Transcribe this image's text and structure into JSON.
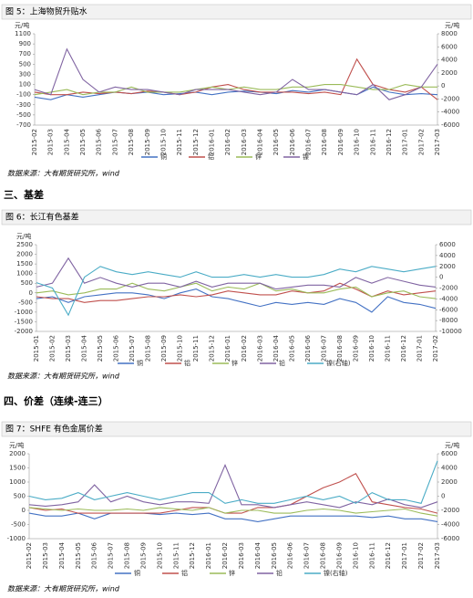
{
  "sections": [
    "三、基差",
    "四、价差（连续-连三）"
  ],
  "chart_data": [
    {
      "type": "line",
      "title": "图 5：上海物贸升贴水",
      "source": "数据来源：大有期货研究所，wind",
      "ylabel": "元/吨",
      "y2label": "元/吨",
      "categories": [
        "2015-02",
        "2015-03",
        "2015-04",
        "2015-05",
        "2015-06",
        "2015-07",
        "2015-08",
        "2015-09",
        "2015-10",
        "2015-11",
        "2015-12",
        "2016-01",
        "2016-02",
        "2016-03",
        "2016-04",
        "2016-05",
        "2016-06",
        "2016-07",
        "2016-08",
        "2016-09",
        "2016-10",
        "2016-11",
        "2016-12",
        "2017-01",
        "2017-02",
        "2017-03"
      ],
      "ylim": [
        -700,
        1100
      ],
      "yticks": [
        -700,
        -500,
        -300,
        -100,
        100,
        300,
        500,
        700,
        900,
        1100
      ],
      "y2lim": [
        -6000,
        8000
      ],
      "y2ticks": [
        -6000,
        -4000,
        -2000,
        0,
        2000,
        4000,
        6000,
        8000
      ],
      "series": [
        {
          "name": "铜",
          "color": "#4472c4",
          "values": [
            -150,
            -200,
            -100,
            -150,
            -100,
            -50,
            -80,
            -50,
            -100,
            -80,
            -50,
            -100,
            -50,
            -30,
            -50,
            -80,
            -20,
            -50,
            0,
            -50,
            -100,
            50,
            -50,
            -100,
            -80,
            -100
          ]
        },
        {
          "name": "铝",
          "color": "#c0504d",
          "values": [
            -50,
            -100,
            -100,
            -50,
            -80,
            -50,
            -80,
            -30,
            -50,
            -100,
            -50,
            50,
            100,
            0,
            -50,
            -50,
            -50,
            -80,
            -50,
            -100,
            600,
            100,
            0,
            -50,
            50,
            -200
          ]
        },
        {
          "name": "锌",
          "color": "#9bbb59",
          "values": [
            -100,
            -50,
            0,
            -100,
            -50,
            -50,
            50,
            -50,
            -50,
            -50,
            0,
            50,
            0,
            50,
            0,
            0,
            50,
            50,
            100,
            100,
            50,
            0,
            0,
            100,
            50,
            50
          ]
        },
        {
          "name": "镍",
          "color": "#8064a2",
          "values": [
            0,
            -100,
            800,
            200,
            -50,
            50,
            0,
            0,
            -50,
            -100,
            0,
            0,
            0,
            -50,
            -100,
            -50,
            200,
            0,
            0,
            -50,
            -100,
            100,
            -200,
            -100,
            50,
            500
          ]
        }
      ]
    },
    {
      "type": "line",
      "title": "图 6：长江有色基差",
      "source": "数据来源：大有期货研究所，wind",
      "ylabel": "元/吨",
      "categories": [
        "2015-01",
        "2015-02",
        "2015-03",
        "2015-04",
        "2015-05",
        "2015-06",
        "2015-07",
        "2015-08",
        "2015-09",
        "2015-10",
        "2015-11",
        "2015-12",
        "2016-01",
        "2016-02",
        "2016-03",
        "2016-04",
        "2016-05",
        "2016-06",
        "2016-07",
        "2016-08",
        "2016-09",
        "2016-10",
        "2016-11",
        "2016-12",
        "2017-01",
        "2017-02"
      ],
      "ylim": [
        -2000,
        2500
      ],
      "yticks": [
        -2000,
        -1500,
        -1000,
        -500,
        0,
        500,
        1000,
        1500,
        2000,
        2500
      ],
      "y2lim": [
        -10000,
        6000
      ],
      "y2ticks": [
        -10000,
        -8000,
        -6000,
        -4000,
        -2000,
        0,
        2000,
        4000,
        6000
      ],
      "series": [
        {
          "name": "铜",
          "color": "#4472c4",
          "values": [
            -300,
            -200,
            -500,
            -200,
            -100,
            0,
            0,
            -100,
            -300,
            0,
            200,
            -200,
            -300,
            -500,
            -700,
            -500,
            -600,
            -500,
            -600,
            -300,
            -500,
            -1000,
            -200,
            -500,
            -600,
            -800
          ]
        },
        {
          "name": "铝",
          "color": "#c0504d",
          "values": [
            -200,
            -300,
            -300,
            -500,
            -400,
            -400,
            -300,
            -200,
            -200,
            -100,
            -200,
            -100,
            100,
            0,
            -100,
            -100,
            100,
            0,
            100,
            500,
            200,
            -200,
            100,
            -100,
            0,
            100
          ]
        },
        {
          "name": "锌",
          "color": "#9bbb59",
          "values": [
            0,
            100,
            -100,
            0,
            200,
            200,
            500,
            200,
            100,
            300,
            500,
            100,
            300,
            200,
            500,
            100,
            200,
            0,
            0,
            200,
            300,
            -200,
            0,
            100,
            -200,
            -300
          ]
        },
        {
          "name": "铅",
          "color": "#8064a2",
          "values": [
            300,
            500,
            1800,
            500,
            800,
            500,
            300,
            500,
            500,
            300,
            600,
            300,
            500,
            500,
            500,
            200,
            300,
            400,
            400,
            300,
            800,
            500,
            800,
            600,
            400,
            300
          ]
        },
        {
          "name": "镍(右轴)",
          "color": "#4bacc6",
          "axis": "y2",
          "values": [
            -1000,
            -2000,
            -7000,
            0,
            2000,
            1000,
            500,
            1000,
            500,
            0,
            1000,
            0,
            0,
            500,
            0,
            500,
            0,
            0,
            500,
            1500,
            1000,
            2000,
            1500,
            1000,
            1500,
            2000
          ]
        }
      ]
    },
    {
      "type": "line",
      "title": "图 7：SHFE 有色金属价差",
      "source": "数据来源：大有期货研究所，wind",
      "ylabel": "元/吨",
      "y2label": "元/吨",
      "categories": [
        "2015-02",
        "2015-03",
        "2015-04",
        "2015-05",
        "2015-06",
        "2015-07",
        "2015-08",
        "2015-09",
        "2015-10",
        "2015-11",
        "2015-12",
        "2016-01",
        "2016-02",
        "2016-03",
        "2016-04",
        "2016-05",
        "2016-06",
        "2016-07",
        "2016-08",
        "2016-09",
        "2016-10",
        "2016-11",
        "2016-12",
        "2017-01",
        "2017-02",
        "2017-03"
      ],
      "ylim": [
        -1000,
        2000
      ],
      "yticks": [
        -1000,
        -500,
        0,
        500,
        1000,
        1500,
        2000
      ],
      "y2lim": [
        -6000,
        6000
      ],
      "y2ticks": [
        -6000,
        -4000,
        -2000,
        0,
        2000,
        4000,
        6000
      ],
      "series": [
        {
          "name": "铜",
          "color": "#4472c4",
          "values": [
            -100,
            -200,
            -200,
            -100,
            -300,
            -100,
            -100,
            -100,
            -150,
            -100,
            -150,
            -100,
            -300,
            -300,
            -400,
            -300,
            -200,
            -200,
            -200,
            -200,
            -200,
            -250,
            -200,
            -300,
            -300,
            -400
          ]
        },
        {
          "name": "铝",
          "color": "#c0504d",
          "values": [
            100,
            0,
            50,
            -100,
            -100,
            -100,
            -100,
            -100,
            -100,
            0,
            100,
            100,
            -100,
            -100,
            100,
            100,
            200,
            500,
            800,
            1000,
            1300,
            300,
            200,
            100,
            50,
            -100
          ]
        },
        {
          "name": "锌",
          "color": "#9bbb59",
          "values": [
            100,
            50,
            0,
            50,
            0,
            0,
            50,
            0,
            100,
            50,
            0,
            100,
            -100,
            0,
            0,
            -100,
            -100,
            0,
            50,
            0,
            -100,
            -50,
            0,
            50,
            -100,
            -200
          ]
        },
        {
          "name": "铅",
          "color": "#8064a2",
          "values": [
            200,
            150,
            200,
            300,
            900,
            300,
            500,
            300,
            200,
            300,
            300,
            250,
            1600,
            200,
            200,
            100,
            200,
            300,
            200,
            100,
            300,
            200,
            400,
            200,
            100,
            300
          ]
        },
        {
          "name": "镍(右轴)",
          "color": "#4bacc6",
          "axis": "y2",
          "values": [
            0,
            -500,
            -300,
            500,
            -500,
            0,
            500,
            0,
            -500,
            0,
            500,
            500,
            -1000,
            -500,
            -1000,
            -1000,
            -500,
            0,
            -500,
            0,
            -1000,
            500,
            -500,
            -500,
            -1000,
            5000
          ]
        }
      ]
    }
  ]
}
